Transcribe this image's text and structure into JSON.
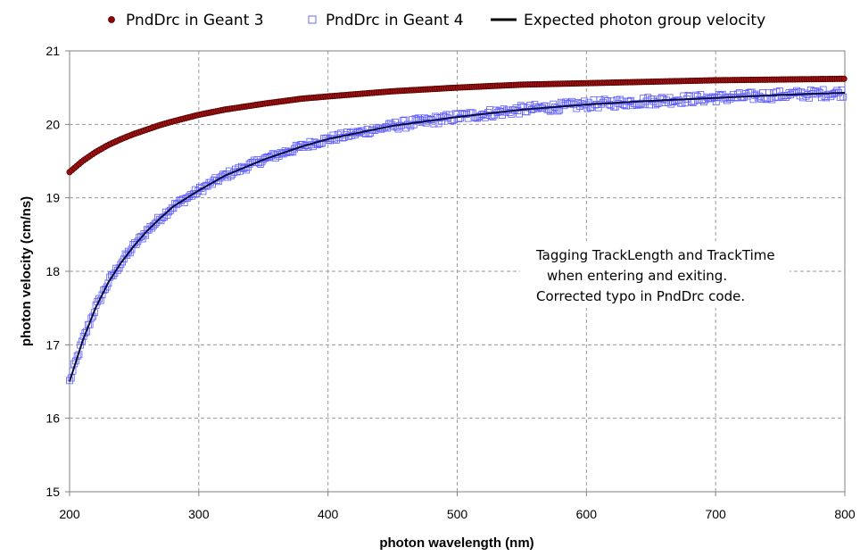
{
  "chart_data": {
    "type": "scatter",
    "title": "",
    "xlabel": "photon wavelength (nm)",
    "ylabel": "photon velocity (cm/ns)",
    "xlim": [
      200,
      800
    ],
    "ylim": [
      15,
      21
    ],
    "xticks": [
      "200",
      "300",
      "400",
      "500",
      "600",
      "700",
      "800"
    ],
    "yticks": [
      "15",
      "16",
      "17",
      "18",
      "19",
      "20",
      "21"
    ],
    "grid": true,
    "legend_position": "top",
    "series": [
      {
        "name": "PndDrc in Geant 3",
        "marker": "filled-circle",
        "color": "#8b0000",
        "x": [
          200,
          210,
          220,
          230,
          240,
          250,
          260,
          270,
          280,
          300,
          320,
          350,
          380,
          400,
          450,
          500,
          550,
          600,
          650,
          700,
          750,
          800
        ],
        "y": [
          19.35,
          19.5,
          19.62,
          19.72,
          19.8,
          19.87,
          19.93,
          19.99,
          20.04,
          20.13,
          20.2,
          20.28,
          20.35,
          20.38,
          20.45,
          20.5,
          20.54,
          20.56,
          20.58,
          20.6,
          20.61,
          20.62
        ]
      },
      {
        "name": "PndDrc in Geant 4",
        "marker": "open-square",
        "color": "#4040ff",
        "x": [
          200,
          210,
          220,
          230,
          240,
          250,
          260,
          270,
          280,
          300,
          320,
          350,
          380,
          400,
          450,
          500,
          550,
          600,
          650,
          700,
          750,
          800
        ],
        "y": [
          16.5,
          17.05,
          17.5,
          17.85,
          18.12,
          18.35,
          18.55,
          18.72,
          18.88,
          19.1,
          19.3,
          19.52,
          19.7,
          19.8,
          19.98,
          20.1,
          20.2,
          20.27,
          20.32,
          20.36,
          20.4,
          20.43
        ]
      },
      {
        "name": "Expected photon group velocity",
        "marker": "line",
        "color": "#000000",
        "x": [
          200,
          210,
          220,
          230,
          240,
          250,
          260,
          270,
          280,
          300,
          320,
          350,
          380,
          400,
          450,
          500,
          550,
          600,
          650,
          700,
          750,
          800
        ],
        "y": [
          16.5,
          17.05,
          17.5,
          17.85,
          18.12,
          18.35,
          18.55,
          18.72,
          18.88,
          19.1,
          19.3,
          19.52,
          19.7,
          19.8,
          19.98,
          20.1,
          20.2,
          20.27,
          20.32,
          20.36,
          20.4,
          20.43
        ]
      }
    ],
    "annotation": {
      "lines": [
        "Tagging TrackLength and TrackTime",
        "when entering and exiting.",
        "Corrected typo in PndDrc code."
      ]
    }
  }
}
